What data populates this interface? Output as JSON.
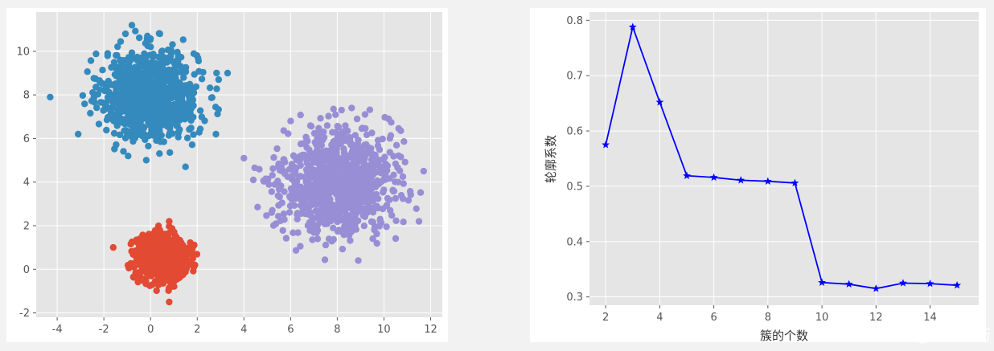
{
  "chart_data": [
    {
      "type": "scatter",
      "title": "",
      "xlabel": "",
      "ylabel": "",
      "xlim": [
        -4.9,
        12.5
      ],
      "ylim": [
        -2.2,
        11.8
      ],
      "xticks": [
        -4,
        -2,
        0,
        2,
        4,
        6,
        8,
        10,
        12
      ],
      "yticks": [
        -2,
        0,
        2,
        4,
        6,
        8,
        10
      ],
      "grid": true,
      "background": "#e5e5e5",
      "series": [
        {
          "color": "#348abd",
          "center": [
            0,
            8
          ],
          "std": 1,
          "count": 1000,
          "sample_points": [
            [
              -0.8,
              11.2
            ],
            [
              -4.3,
              7.9
            ],
            [
              3.3,
              9.0
            ],
            [
              1.5,
              4.7
            ],
            [
              0.4,
              10.8
            ],
            [
              -3.1,
              6.2
            ],
            [
              2.8,
              6.2
            ]
          ]
        },
        {
          "color": "#e24a33",
          "center": [
            0.5,
            0.5
          ],
          "std": 0.5,
          "count": 1000,
          "sample_points": [
            [
              -1.6,
              1.0
            ],
            [
              0.8,
              -1.5
            ],
            [
              0.8,
              2.2
            ],
            [
              1.9,
              0.2
            ]
          ]
        },
        {
          "color": "#988ed5",
          "center": [
            8,
            4
          ],
          "std": 1.2,
          "count": 1000,
          "sample_points": [
            [
              4.0,
              5.1
            ],
            [
              10.2,
              6.9
            ],
            [
              11.7,
              4.5
            ],
            [
              8.9,
              0.4
            ],
            [
              11.5,
              2.2
            ],
            [
              6.0,
              6.8
            ]
          ]
        }
      ]
    },
    {
      "type": "line",
      "title": "",
      "xlabel": "簇的个数",
      "ylabel": "轮廓系数",
      "xlim": [
        1.4,
        15.8
      ],
      "ylim": [
        0.285,
        0.815
      ],
      "xticks": [
        2,
        4,
        6,
        8,
        10,
        12,
        14
      ],
      "yticks": [
        0.3,
        0.4,
        0.5,
        0.6,
        0.7,
        0.8
      ],
      "grid": true,
      "background": "#e5e5e5",
      "color": "#0000ff",
      "marker": "star",
      "series": [
        {
          "x": [
            2,
            3,
            4,
            5,
            6,
            7,
            8,
            9,
            10,
            11,
            12,
            13,
            14,
            15
          ],
          "values": [
            0.575,
            0.788,
            0.652,
            0.519,
            0.516,
            0.511,
            0.509,
            0.506,
            0.326,
            0.323,
            0.315,
            0.325,
            0.324,
            0.321
          ]
        }
      ]
    }
  ],
  "watermark": "CSDN @浊酒南街"
}
